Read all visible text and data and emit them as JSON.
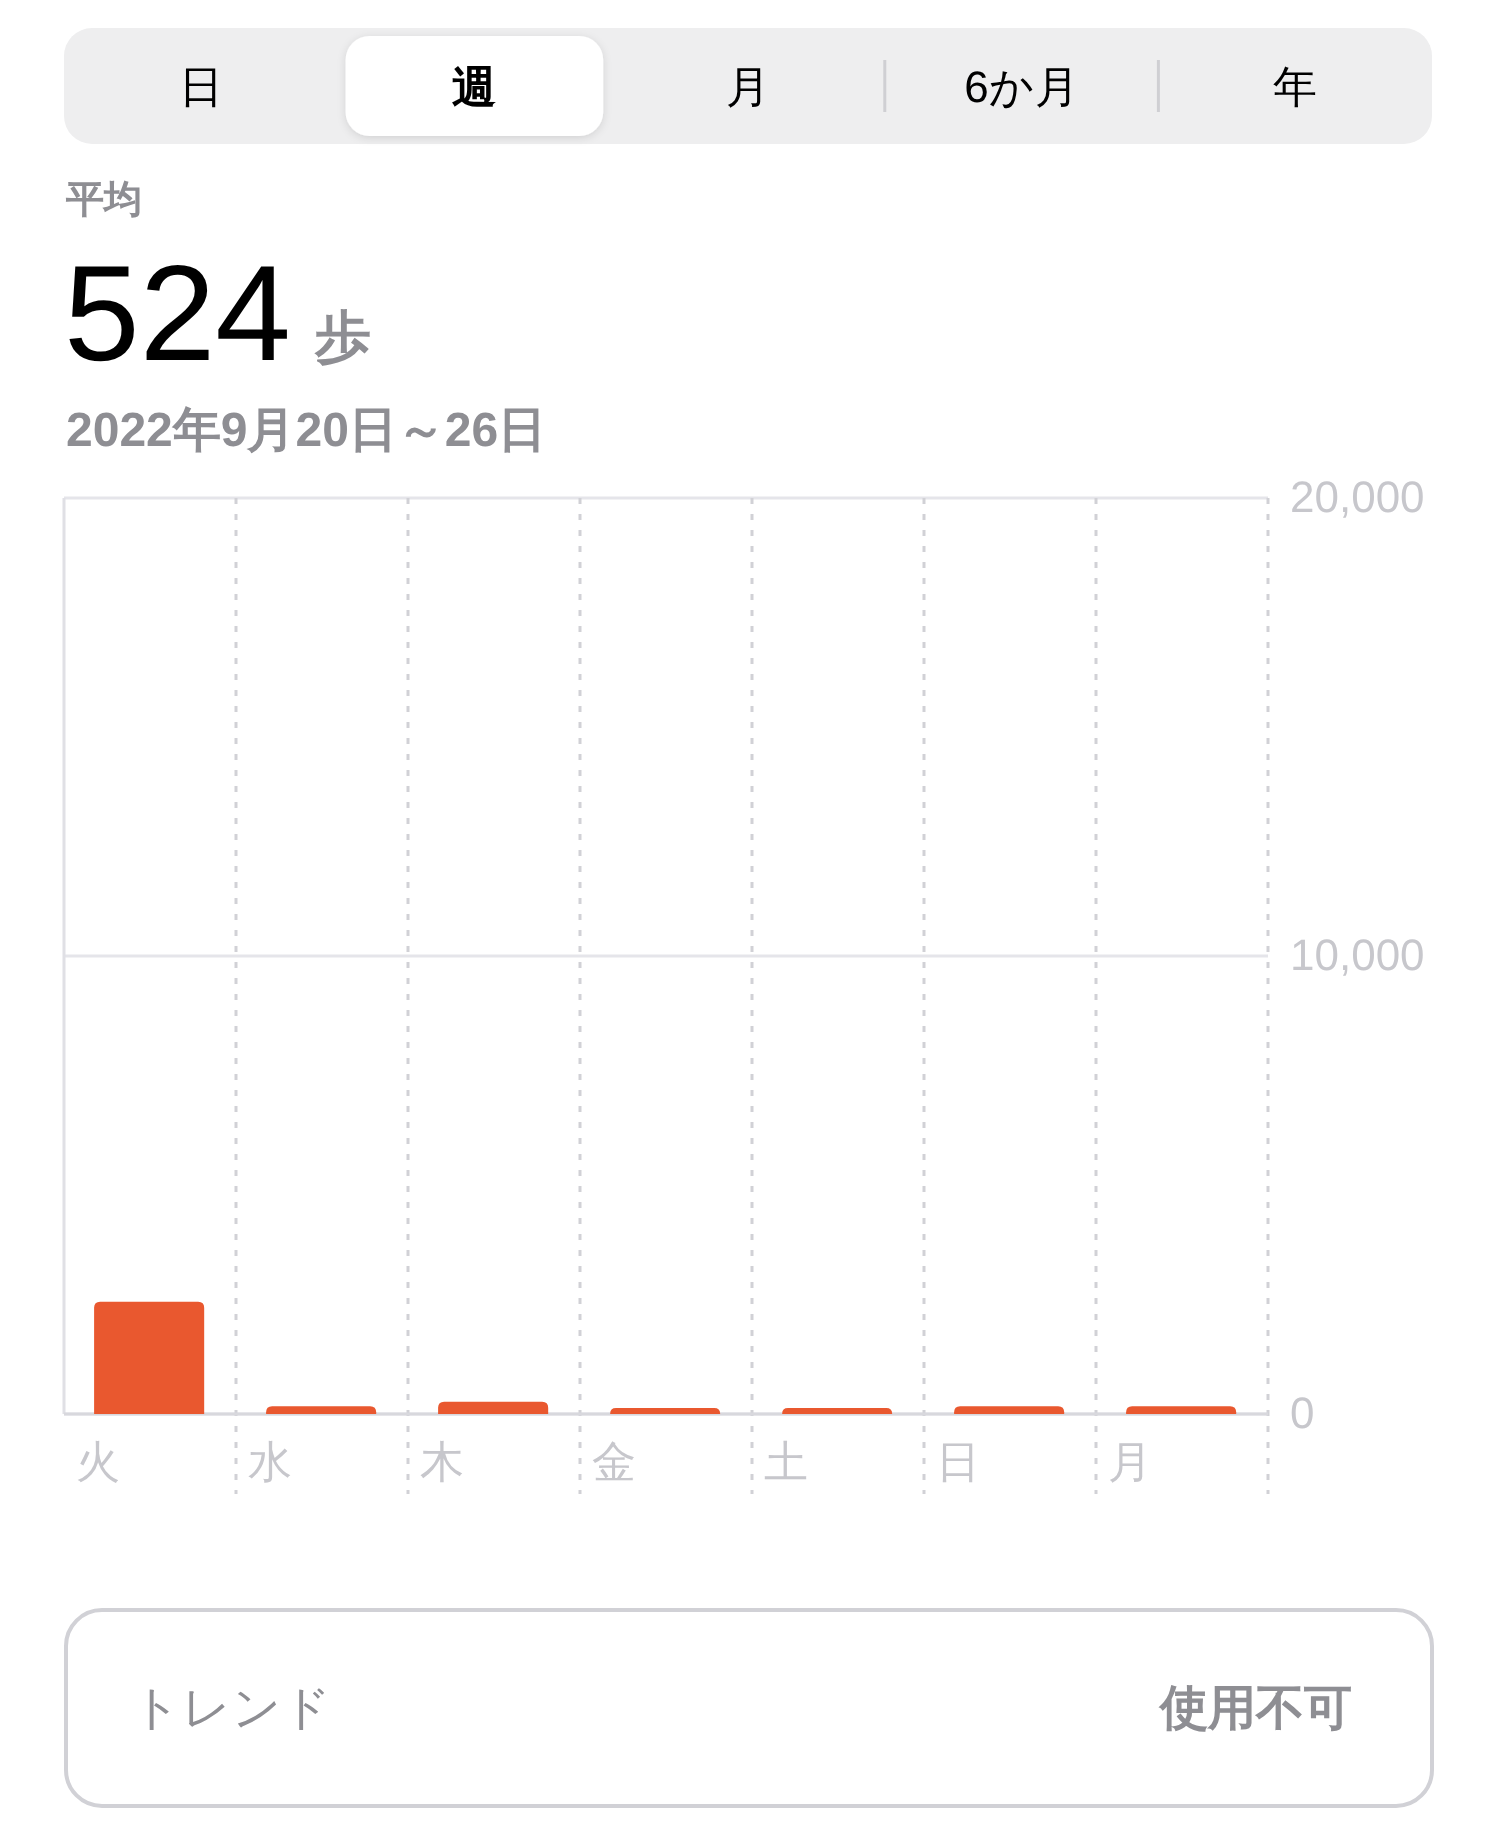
{
  "chart_data": {
    "type": "bar",
    "title": "平均",
    "subtitle": "2022年9月20日～26日",
    "annotations": [
      "日",
      "週",
      "月",
      "6か月",
      "年",
      "524",
      "歩",
      "トレンド",
      "使用不可"
    ],
    "categories": [
      "火",
      "水",
      "木",
      "金",
      "土",
      "日",
      "月"
    ],
    "values": [
      2450,
      170,
      270,
      130,
      130,
      170,
      170
    ],
    "color": "#e9582f",
    "ylim": [
      0,
      20000
    ],
    "yticks": [
      0,
      {
        "value": 10000,
        "label": "10,000"
      },
      {
        "value": 20000,
        "label": "20,000"
      }
    ],
    "grid": true
  }
}
